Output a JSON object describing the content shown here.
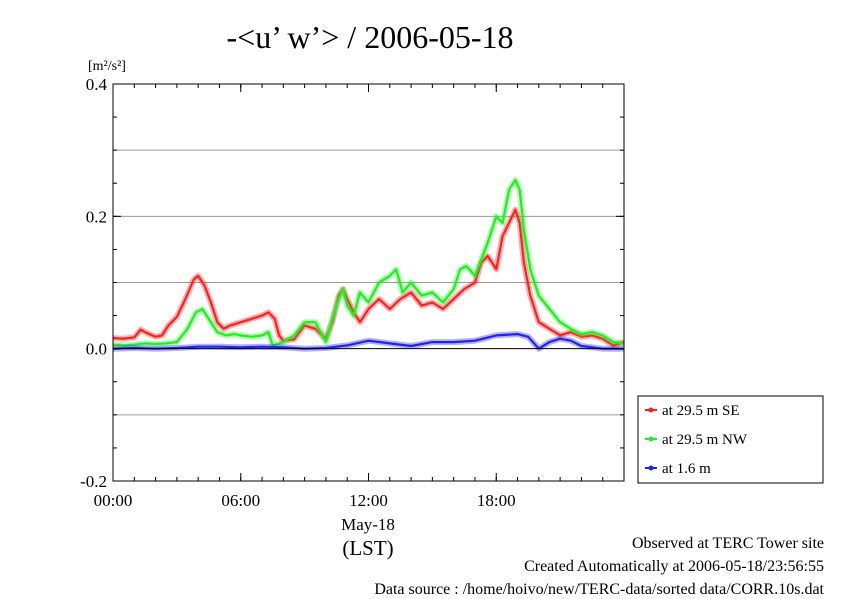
{
  "chart_data": {
    "type": "line",
    "title": "-<u’ w’> / 2006-05-18",
    "ylabel": "[m²/s²]",
    "ylim": [
      -0.2,
      0.4
    ],
    "yticks": [
      -0.2,
      0.0,
      0.2,
      0.4
    ],
    "ytick_labels": [
      "-0.2",
      "0.0",
      "0.2",
      "0.4"
    ],
    "ygrid": [
      0.3,
      0.2,
      0.1,
      -0.1
    ],
    "xlim": [
      0,
      24
    ],
    "xticks": [
      0,
      6,
      12,
      18
    ],
    "xtick_labels": [
      "00:00",
      "06:00",
      "12:00",
      "18:00"
    ],
    "xdate_label": "May-18",
    "xlabel": "(LST)",
    "legend_position": "right-bottom",
    "series": [
      {
        "name": "at 29.5 m SE",
        "color": "#ff2020",
        "x": [
          0,
          0.5,
          1,
          1.3,
          1.5,
          2,
          2.3,
          2.6,
          3,
          3.4,
          3.8,
          4,
          4.3,
          4.6,
          4.9,
          5.2,
          5.5,
          6,
          6.5,
          7,
          7.3,
          7.6,
          7.8,
          8,
          8.5,
          9,
          9.5,
          10,
          10.3,
          10.6,
          10.8,
          11,
          11.3,
          11.6,
          12,
          12.5,
          13,
          13.5,
          14,
          14.5,
          15,
          15.5,
          16,
          16.5,
          17,
          17.3,
          17.6,
          18,
          18.3,
          18.6,
          18.9,
          19.1,
          19.3,
          19.6,
          20,
          20.5,
          21,
          21.5,
          22,
          22.5,
          23,
          23.5,
          24
        ],
        "y": [
          0.016,
          0.015,
          0.017,
          0.029,
          0.025,
          0.018,
          0.02,
          0.035,
          0.048,
          0.075,
          0.105,
          0.11,
          0.095,
          0.07,
          0.04,
          0.03,
          0.035,
          0.04,
          0.045,
          0.05,
          0.055,
          0.045,
          0.02,
          0.012,
          0.014,
          0.035,
          0.03,
          0.015,
          0.04,
          0.08,
          0.09,
          0.075,
          0.055,
          0.04,
          0.06,
          0.075,
          0.06,
          0.075,
          0.085,
          0.065,
          0.07,
          0.06,
          0.075,
          0.09,
          0.1,
          0.13,
          0.14,
          0.12,
          0.17,
          0.19,
          0.21,
          0.19,
          0.13,
          0.08,
          0.04,
          0.03,
          0.02,
          0.025,
          0.018,
          0.02,
          0.015,
          0.005,
          0.01
        ]
      },
      {
        "name": "at 29.5 m NW",
        "color": "#22ee22",
        "x": [
          0,
          0.5,
          1,
          1.5,
          2,
          2.5,
          3,
          3.5,
          3.9,
          4.2,
          4.5,
          4.9,
          5.3,
          5.7,
          6,
          6.5,
          7,
          7.3,
          7.5,
          7.8,
          8,
          8.5,
          9,
          9.5,
          10,
          10.3,
          10.6,
          10.8,
          11,
          11.3,
          11.6,
          12,
          12.5,
          13,
          13.3,
          13.6,
          14,
          14.5,
          15,
          15.5,
          16,
          16.3,
          16.6,
          17,
          17.3,
          17.6,
          18,
          18.3,
          18.6,
          18.9,
          19.1,
          19.3,
          19.6,
          20,
          20.5,
          21,
          21.5,
          22,
          22.5,
          23,
          23.5,
          24
        ],
        "y": [
          0.006,
          0.005,
          0.006,
          0.008,
          0.007,
          0.008,
          0.01,
          0.03,
          0.055,
          0.06,
          0.045,
          0.025,
          0.02,
          0.022,
          0.02,
          0.018,
          0.02,
          0.025,
          0.005,
          0.008,
          0.01,
          0.02,
          0.04,
          0.04,
          0.01,
          0.045,
          0.075,
          0.09,
          0.065,
          0.05,
          0.085,
          0.07,
          0.1,
          0.11,
          0.12,
          0.085,
          0.1,
          0.08,
          0.085,
          0.07,
          0.09,
          0.12,
          0.125,
          0.11,
          0.135,
          0.16,
          0.2,
          0.19,
          0.24,
          0.255,
          0.24,
          0.18,
          0.12,
          0.08,
          0.06,
          0.04,
          0.03,
          0.022,
          0.025,
          0.02,
          0.01,
          0.008
        ]
      },
      {
        "name": "at 1.6 m",
        "color": "#2222ee",
        "x": [
          0,
          1,
          2,
          3,
          4,
          5,
          6,
          7,
          8,
          9,
          10,
          11,
          12,
          13,
          14,
          15,
          16,
          17,
          18,
          19,
          19.5,
          20,
          20.5,
          21,
          21.5,
          22,
          23,
          24
        ],
        "y": [
          0.0,
          0.001,
          0.0,
          0.001,
          0.003,
          0.003,
          0.002,
          0.003,
          0.002,
          0.0,
          0.001,
          0.005,
          0.012,
          0.008,
          0.004,
          0.01,
          0.01,
          0.012,
          0.02,
          0.022,
          0.018,
          0.0,
          0.01,
          0.015,
          0.012,
          0.004,
          0.0,
          0.0
        ]
      }
    ]
  },
  "footer": {
    "site": "Observed at TERC Tower site",
    "created": "Created Automatically at 2006-05-18/23:56:55",
    "source": "Data source : /home/hoivo/new/TERC-data/sorted  data/CORR.10s.dat"
  }
}
